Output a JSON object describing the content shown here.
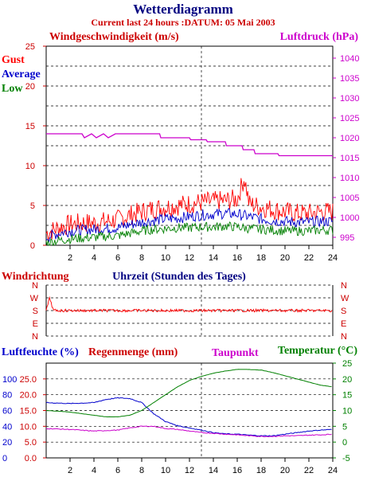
{
  "header": {
    "title": "Wetterdiagramm",
    "subtitle": "Current last 24 hours :DATUM: 05 Mai 2003"
  },
  "colors": {
    "red": "#ff0000",
    "darkred": "#cc0000",
    "blue": "#0000cc",
    "green": "#008000",
    "magenta": "#cc00cc",
    "navy": "#000080"
  },
  "chart_data": [
    {
      "type": "line",
      "name": "wind-pressure-panel",
      "left_label": "Windgeschwindigkeit (m/s)",
      "right_label": "Luftdruck (hPa)",
      "legend": [
        "Gust",
        "Average",
        "Low"
      ],
      "x_ticks": [
        2,
        4,
        6,
        8,
        10,
        12,
        14,
        16,
        18,
        20,
        22,
        24
      ],
      "xlim": [
        0,
        24
      ],
      "y_left_ticks": [
        0,
        5,
        10,
        15,
        20,
        25
      ],
      "ylim_left": [
        0,
        25
      ],
      "y_right_ticks": [
        995,
        1000,
        1005,
        1010,
        1015,
        1020,
        1025,
        1030,
        1035,
        1040
      ],
      "ylim_right": [
        993,
        1043
      ],
      "series": [
        {
          "name": "Gust",
          "axis": "left",
          "x": [
            0,
            1,
            2,
            3,
            4,
            5,
            6,
            7,
            8,
            9,
            10,
            11,
            12,
            13,
            14,
            15,
            16,
            16.6,
            17,
            18,
            19,
            20,
            21,
            22,
            23,
            24
          ],
          "values": [
            1.5,
            2.2,
            2.6,
            2.8,
            2.8,
            3.0,
            3.2,
            3.8,
            4.2,
            4.6,
            4.8,
            5.0,
            5.2,
            5.4,
            5.5,
            5.6,
            5.8,
            8.5,
            5.2,
            4.8,
            4.5,
            4.2,
            4.0,
            4.0,
            4.2,
            4.2
          ]
        },
        {
          "name": "Average",
          "axis": "left",
          "x": [
            0,
            1,
            2,
            3,
            4,
            5,
            6,
            7,
            8,
            9,
            10,
            11,
            12,
            13,
            14,
            15,
            16,
            17,
            18,
            19,
            20,
            21,
            22,
            23,
            24
          ],
          "values": [
            1.0,
            1.5,
            1.8,
            1.9,
            2.0,
            2.1,
            2.2,
            2.6,
            2.9,
            3.1,
            3.3,
            3.4,
            3.6,
            3.8,
            3.9,
            4.0,
            3.9,
            3.6,
            3.3,
            3.1,
            3.0,
            2.9,
            2.9,
            3.0,
            3.0
          ]
        },
        {
          "name": "Low",
          "axis": "left",
          "x": [
            0,
            1,
            2,
            3,
            4,
            5,
            6,
            7,
            8,
            9,
            10,
            11,
            12,
            13,
            14,
            15,
            16,
            17,
            18,
            19,
            20,
            21,
            22,
            23,
            24
          ],
          "values": [
            0.3,
            0.6,
            0.8,
            0.9,
            1.0,
            1.1,
            1.2,
            1.5,
            1.8,
            2.0,
            2.1,
            2.2,
            2.2,
            2.3,
            2.3,
            2.4,
            2.3,
            2.1,
            2.0,
            1.9,
            1.8,
            1.8,
            1.8,
            1.9,
            1.9
          ]
        },
        {
          "name": "Luftdruck",
          "axis": "right",
          "x": [
            0,
            3,
            3.2,
            3.8,
            4.2,
            4.8,
            5.2,
            5.8,
            9.5,
            9.6,
            12,
            12.1,
            13.4,
            13.5,
            15,
            15.1,
            16.4,
            16.5,
            17.4,
            17.5,
            19.4,
            19.5,
            24
          ],
          "values": [
            1021,
            1021,
            1020,
            1021,
            1020,
            1021,
            1020,
            1021,
            1021,
            1020,
            1020,
            1019.5,
            1019.5,
            1019,
            1019,
            1018,
            1018,
            1017,
            1017,
            1016,
            1016,
            1015.5,
            1015.5
          ]
        }
      ]
    },
    {
      "type": "line",
      "name": "wind-direction-panel",
      "left_label": "Windrichtung",
      "center_label": "Uhrzeit (Stunden des Tages)",
      "y_ticks": [
        "N",
        "W",
        "S",
        "E",
        "N"
      ],
      "xlim": [
        0,
        24
      ],
      "series": [
        {
          "name": "Windrichtung",
          "x": [
            0,
            0.3,
            0.6,
            1,
            2,
            4,
            6,
            8,
            10,
            12,
            14,
            16,
            18,
            20,
            22,
            24
          ],
          "values": [
            "S",
            "W",
            "S",
            "S",
            "S",
            "S",
            "S",
            "S",
            "S",
            "S",
            "S",
            "S",
            "S",
            "S",
            "S",
            "S"
          ]
        }
      ]
    },
    {
      "type": "line",
      "name": "humidity-temperature-panel",
      "labels": [
        "Luftfeuchte (%)",
        "Regenmenge (mm)",
        "Taupunkt",
        "Temperatur (°C)"
      ],
      "x_ticks": [
        2,
        4,
        6,
        8,
        10,
        12,
        14,
        16,
        18,
        20,
        22,
        24
      ],
      "xlim": [
        0,
        24
      ],
      "y_left_humidity_ticks": [
        0,
        20,
        40,
        60,
        80,
        100
      ],
      "y_left_rain_ticks": [
        "0.0",
        "5.0",
        "10.0",
        "15.0",
        "20.0",
        "25.0"
      ],
      "ylim_rain": [
        0,
        30
      ],
      "y_right_ticks": [
        -5,
        0,
        5,
        10,
        15,
        20,
        25
      ],
      "ylim_right": [
        -5,
        25
      ],
      "series": [
        {
          "name": "Luftfeuchte",
          "axis": "rain",
          "x": [
            0,
            2,
            4,
            5,
            6,
            7,
            8,
            9,
            10,
            11,
            12,
            13,
            14,
            15,
            16,
            17,
            18,
            19,
            20,
            21,
            22,
            23,
            24
          ],
          "values": [
            17.5,
            17.2,
            17.5,
            18.5,
            19.0,
            18.8,
            17.5,
            14.0,
            11.5,
            10.2,
            9.5,
            8.8,
            8.0,
            7.6,
            7.5,
            7.2,
            7.0,
            7.0,
            7.5,
            8.0,
            8.5,
            8.8,
            9.0
          ]
        },
        {
          "name": "Taupunkt",
          "axis": "right",
          "x": [
            0,
            2,
            4,
            6,
            7,
            8,
            9,
            10,
            11,
            12,
            13,
            14,
            15,
            16,
            17,
            18,
            19,
            20,
            21,
            22,
            23,
            24
          ],
          "values": [
            4.3,
            4.0,
            3.5,
            3.8,
            4.5,
            5.0,
            5.0,
            4.3,
            4.0,
            3.5,
            3.0,
            2.8,
            2.5,
            2.3,
            2.0,
            1.8,
            1.8,
            2.0,
            2.0,
            2.2,
            2.3,
            2.5
          ]
        },
        {
          "name": "Temperatur",
          "axis": "right",
          "x": [
            0,
            1,
            2,
            3,
            4,
            5,
            6,
            7,
            8,
            9,
            10,
            11,
            12,
            13,
            14,
            15,
            16,
            17,
            18,
            19,
            20,
            21,
            22,
            23,
            24
          ],
          "values": [
            10.0,
            9.8,
            9.5,
            9.0,
            8.5,
            8.0,
            8.0,
            8.5,
            10.0,
            12.5,
            15.0,
            17.5,
            19.5,
            20.8,
            21.8,
            22.5,
            23.0,
            23.0,
            22.8,
            22.0,
            21.0,
            20.0,
            19.0,
            18.0,
            17.5
          ]
        }
      ]
    }
  ]
}
